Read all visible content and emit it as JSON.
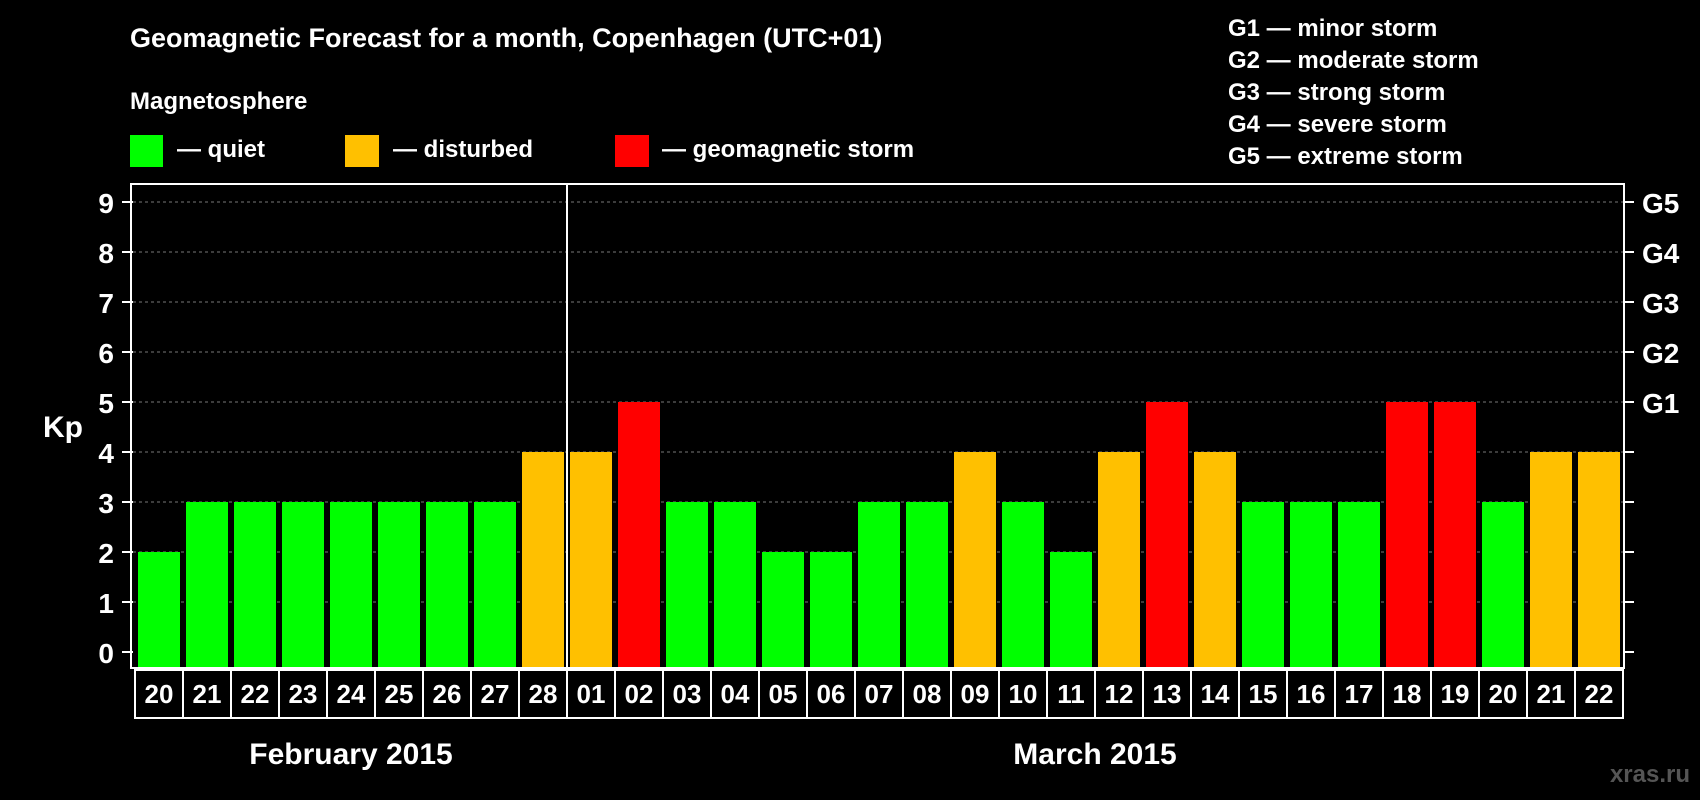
{
  "title": "Geomagnetic Forecast for a month, Copenhagen (UTC+01)",
  "subtitle": "Magnetosphere",
  "legend": [
    {
      "label": "— quiet",
      "color": "#00ff00"
    },
    {
      "label": "— disturbed",
      "color": "#ffc000"
    },
    {
      "label": "— geomagnetic storm",
      "color": "#ff0000"
    }
  ],
  "storm_scale": [
    "G1 — minor storm",
    "G2 — moderate storm",
    "G3 — strong storm",
    "G4 — severe storm",
    "G5 — extreme storm"
  ],
  "watermark": "xras.ru",
  "chart_data": {
    "type": "bar",
    "ylabel": "Kp",
    "ylim": [
      0,
      9
    ],
    "yticks": [
      "0",
      "1",
      "2",
      "3",
      "4",
      "5",
      "6",
      "7",
      "8",
      "9"
    ],
    "right_axis": [
      {
        "kp": 5,
        "label": "G1"
      },
      {
        "kp": 6,
        "label": "G2"
      },
      {
        "kp": 7,
        "label": "G3"
      },
      {
        "kp": 8,
        "label": "G4"
      },
      {
        "kp": 9,
        "label": "G5"
      }
    ],
    "grid": true,
    "months": [
      {
        "label": "February 2015",
        "days": 9
      },
      {
        "label": "March 2015",
        "days": 22
      }
    ],
    "categories": [
      "20",
      "21",
      "22",
      "23",
      "24",
      "25",
      "26",
      "27",
      "28",
      "01",
      "02",
      "03",
      "04",
      "05",
      "06",
      "07",
      "08",
      "09",
      "10",
      "11",
      "12",
      "13",
      "14",
      "15",
      "16",
      "17",
      "18",
      "19",
      "20",
      "21",
      "22"
    ],
    "values": [
      2,
      3,
      3,
      3,
      3,
      3,
      3,
      3,
      4,
      4,
      5,
      3,
      3,
      2,
      2,
      3,
      3,
      4,
      3,
      2,
      4,
      5,
      4,
      3,
      3,
      3,
      5,
      5,
      3,
      4,
      4
    ],
    "level_colors": {
      "quiet": "#00ff00",
      "disturbed": "#ffc000",
      "storm": "#ff0000"
    }
  }
}
